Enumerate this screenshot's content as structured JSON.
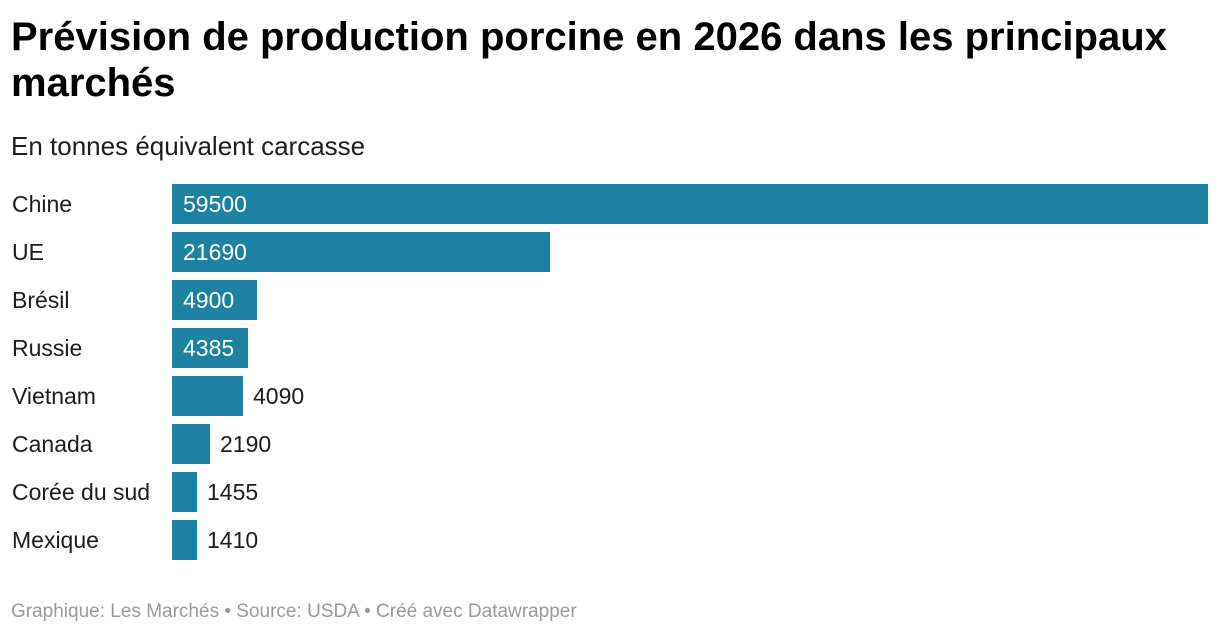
{
  "header": {
    "title": "Prévision de production porcine en 2026 dans les principaux marchés",
    "subtitle": "En tonnes équivalent carcasse"
  },
  "footer": {
    "credit_label": "Graphique: ",
    "credit": "Les Marchés",
    "separator": " • ",
    "source_label": "Source: ",
    "source": "USDA",
    "tool": "Créé avec Datawrapper"
  },
  "colors": {
    "bar": "#1d81a2",
    "label_inside": "#ffffff",
    "label_outside": "#1d1d1d",
    "footer_text": "#9a9a9a"
  },
  "chart_data": {
    "type": "bar",
    "orientation": "horizontal",
    "title": "Prévision de production porcine en 2026 dans les principaux marchés",
    "subtitle": "En tonnes équivalent carcasse",
    "categories": [
      "Chine",
      "UE",
      "Brésil",
      "Russie",
      "Vietnam",
      "Canada",
      "Corée du sud",
      "Mexique"
    ],
    "values": [
      59500,
      21690,
      4900,
      4385,
      4090,
      2190,
      1455,
      1410
    ],
    "xlim": [
      0,
      59500
    ],
    "grid": false,
    "legend": "none",
    "data_labels": true
  }
}
